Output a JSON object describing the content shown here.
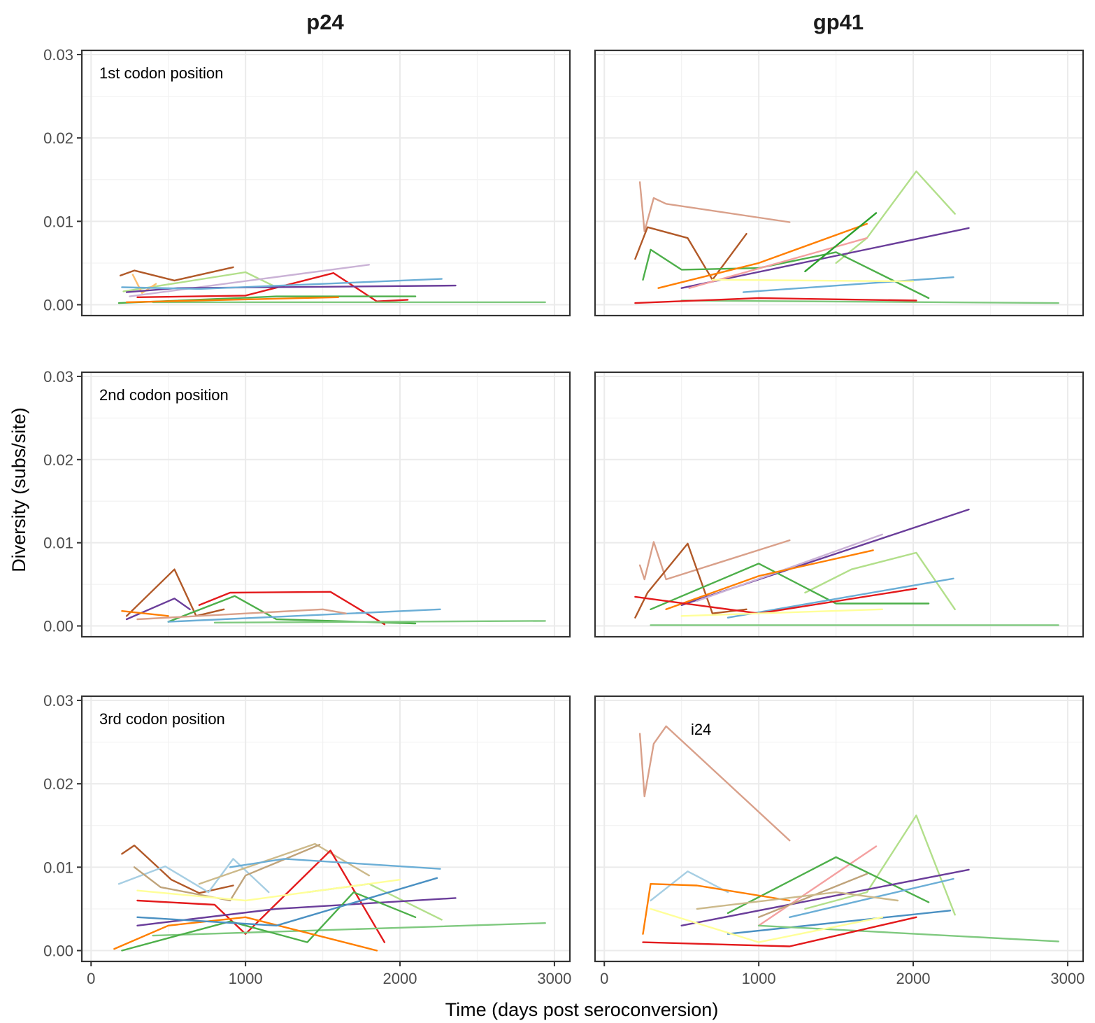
{
  "chart_data": {
    "type": "line",
    "facet_columns": [
      "p24",
      "gp41"
    ],
    "facet_rows": [
      "1st codon position",
      "2nd codon position",
      "3rd codon position"
    ],
    "xlabel": "Time (days post seroconversion)",
    "ylabel": "Diversity (subs/site)",
    "xlim": [
      -60,
      3100
    ],
    "ylim": [
      -0.0013,
      0.0305
    ],
    "x_ticks": [
      0,
      1000,
      2000,
      3000
    ],
    "y_ticks": [
      0.0,
      0.01,
      0.02,
      0.03
    ],
    "x_tick_labels": [
      "0",
      "1000",
      "2000",
      "3000"
    ],
    "y_tick_labels": [
      "0.00",
      "0.01",
      "0.02",
      "0.03"
    ],
    "grid": true,
    "annotation": {
      "panel": "gp41 / 3rd codon position",
      "text": "i24",
      "x": 560,
      "y": 0.0259
    },
    "panels": [
      {
        "column": "p24",
        "row": "1st codon position",
        "series": [
          {
            "color": "#b15928",
            "x": [
              190,
              280,
              540,
              920
            ],
            "y": [
              0.0035,
              0.0041,
              0.0029,
              0.0045
            ]
          },
          {
            "color": "#b2df8a",
            "x": [
              210,
              520,
              1000,
              1200
            ],
            "y": [
              0.0016,
              0.0025,
              0.0039,
              0.0021
            ]
          },
          {
            "color": "#cab2d6",
            "x": [
              250,
              1800
            ],
            "y": [
              0.001,
              0.0048
            ]
          },
          {
            "color": "#e31a1c",
            "x": [
              300,
              1000,
              1570,
              1850,
              2050
            ],
            "y": [
              0.0009,
              0.0011,
              0.0038,
              0.0004,
              0.0006
            ]
          },
          {
            "color": "#fdbf6f",
            "x": [
              270,
              330,
              420
            ],
            "y": [
              0.0036,
              0.0014,
              0.0025
            ]
          },
          {
            "color": "#6a3d9a",
            "x": [
              230,
              560,
              2360
            ],
            "y": [
              0.0015,
              0.002,
              0.0023
            ]
          },
          {
            "color": "#6baed6",
            "x": [
              200,
              700,
              2270
            ],
            "y": [
              0.0021,
              0.0019,
              0.0031
            ]
          },
          {
            "color": "#4daf4a",
            "x": [
              180,
              1200,
              2100
            ],
            "y": [
              0.0002,
              0.001,
              0.001
            ]
          },
          {
            "color": "#7fc97f",
            "x": [
              400,
              2940
            ],
            "y": [
              0.0003,
              0.0003
            ]
          },
          {
            "color": "#ff7f00",
            "x": [
              230,
              900,
              1600
            ],
            "y": [
              0.0003,
              0.0006,
              0.0009
            ]
          }
        ]
      },
      {
        "column": "gp41",
        "row": "1st codon position",
        "series": [
          {
            "color": "#d9a08a",
            "x": [
              230,
              260,
              320,
              400,
              1200
            ],
            "y": [
              0.0147,
              0.0088,
              0.0128,
              0.0121,
              0.0099
            ]
          },
          {
            "color": "#b15928",
            "x": [
              200,
              280,
              540,
              700,
              920
            ],
            "y": [
              0.0055,
              0.0093,
              0.008,
              0.003,
              0.0085
            ]
          },
          {
            "color": "#b2df8a",
            "x": [
              1500,
              1700,
              2020,
              2270
            ],
            "y": [
              0.005,
              0.008,
              0.016,
              0.0109
            ]
          },
          {
            "color": "#6a3d9a",
            "x": [
              500,
              2360
            ],
            "y": [
              0.002,
              0.0092
            ]
          },
          {
            "color": "#4daf4a",
            "x": [
              250,
              300,
              500,
              1000,
              1500,
              2100
            ],
            "y": [
              0.003,
              0.0066,
              0.0042,
              0.0044,
              0.0063,
              0.0008
            ]
          },
          {
            "color": "#ff7f00",
            "x": [
              350,
              1000,
              1700
            ],
            "y": [
              0.002,
              0.005,
              0.0097
            ]
          },
          {
            "color": "#f4a0a0",
            "x": [
              550,
              1700
            ],
            "y": [
              0.002,
              0.008
            ]
          },
          {
            "color": "#2ca02c",
            "x": [
              1300,
              1760
            ],
            "y": [
              0.004,
              0.011
            ]
          },
          {
            "color": "#6baed6",
            "x": [
              900,
              2260
            ],
            "y": [
              0.0015,
              0.0033
            ]
          },
          {
            "color": "#7fc97f",
            "x": [
              500,
              2940
            ],
            "y": [
              0.0005,
              0.0002
            ]
          },
          {
            "color": "#ffff99",
            "x": [
              700,
              2000
            ],
            "y": [
              0.003,
              0.0028
            ]
          },
          {
            "color": "#e31a1c",
            "x": [
              200,
              1000,
              2020
            ],
            "y": [
              0.0002,
              0.0008,
              0.0005
            ]
          }
        ]
      },
      {
        "column": "p24",
        "row": "2nd codon position",
        "series": [
          {
            "color": "#b15928",
            "x": [
              230,
              540,
              680,
              860
            ],
            "y": [
              0.0012,
              0.0068,
              0.0012,
              0.002
            ]
          },
          {
            "color": "#e31a1c",
            "x": [
              700,
              900,
              1550,
              1900
            ],
            "y": [
              0.0025,
              0.004,
              0.0041,
              0.0002
            ]
          },
          {
            "color": "#4daf4a",
            "x": [
              500,
              930,
              1200,
              2100
            ],
            "y": [
              0.0005,
              0.0036,
              0.0008,
              0.0003
            ]
          },
          {
            "color": "#6a3d9a",
            "x": [
              230,
              540,
              640
            ],
            "y": [
              0.0008,
              0.0033,
              0.002
            ]
          },
          {
            "color": "#6baed6",
            "x": [
              500,
              2260
            ],
            "y": [
              0.0005,
              0.002
            ]
          },
          {
            "color": "#7fc97f",
            "x": [
              800,
              2940
            ],
            "y": [
              0.0004,
              0.0006
            ]
          },
          {
            "color": "#d9a08a",
            "x": [
              300,
              1500,
              1650
            ],
            "y": [
              0.0008,
              0.002,
              0.0015
            ]
          },
          {
            "color": "#ff7f00",
            "x": [
              200,
              500
            ],
            "y": [
              0.0018,
              0.0012
            ]
          }
        ]
      },
      {
        "column": "gp41",
        "row": "2nd codon position",
        "series": [
          {
            "color": "#d9a08a",
            "x": [
              230,
              260,
              320,
              400,
              1200
            ],
            "y": [
              0.0073,
              0.0056,
              0.0101,
              0.0056,
              0.0103
            ]
          },
          {
            "color": "#b15928",
            "x": [
              200,
              280,
              540,
              700,
              920
            ],
            "y": [
              0.001,
              0.004,
              0.0099,
              0.0015,
              0.002
            ]
          },
          {
            "color": "#6a3d9a",
            "x": [
              500,
              2360
            ],
            "y": [
              0.0025,
              0.014
            ]
          },
          {
            "color": "#b2df8a",
            "x": [
              1300,
              1600,
              2020,
              2270
            ],
            "y": [
              0.004,
              0.0068,
              0.0088,
              0.002
            ]
          },
          {
            "color": "#4daf4a",
            "x": [
              300,
              1000,
              1500,
              2100
            ],
            "y": [
              0.002,
              0.0075,
              0.0027,
              0.0027
            ]
          },
          {
            "color": "#cab2d6",
            "x": [
              600,
              1800
            ],
            "y": [
              0.003,
              0.011
            ]
          },
          {
            "color": "#ff7f00",
            "x": [
              400,
              1000,
              1740
            ],
            "y": [
              0.002,
              0.006,
              0.0091
            ]
          },
          {
            "color": "#6baed6",
            "x": [
              800,
              2260
            ],
            "y": [
              0.001,
              0.0057
            ]
          },
          {
            "color": "#e31a1c",
            "x": [
              200,
              1000,
              2020
            ],
            "y": [
              0.0035,
              0.0015,
              0.0045
            ]
          },
          {
            "color": "#7fc97f",
            "x": [
              300,
              2940
            ],
            "y": [
              0.0001,
              0.0001
            ]
          },
          {
            "color": "#ffff99",
            "x": [
              500,
              1800
            ],
            "y": [
              0.0012,
              0.002
            ]
          }
        ]
      },
      {
        "column": "p24",
        "row": "3rd codon position",
        "series": [
          {
            "color": "#b15928",
            "x": [
              200,
              280,
              520,
              700,
              920
            ],
            "y": [
              0.0116,
              0.0126,
              0.0085,
              0.0069,
              0.0078
            ]
          },
          {
            "color": "#a6cee3",
            "x": [
              180,
              480,
              760,
              920,
              1150
            ],
            "y": [
              0.008,
              0.0101,
              0.007,
              0.011,
              0.007
            ]
          },
          {
            "color": "#ccb98a",
            "x": [
              700,
              1450,
              1800
            ],
            "y": [
              0.008,
              0.0128,
              0.009
            ]
          },
          {
            "color": "#bfa37a",
            "x": [
              280,
              450,
              900,
              1000,
              1480
            ],
            "y": [
              0.01,
              0.0076,
              0.006,
              0.009,
              0.0127
            ]
          },
          {
            "color": "#e31a1c",
            "x": [
              300,
              800,
              1000,
              1550,
              1900
            ],
            "y": [
              0.006,
              0.0055,
              0.002,
              0.012,
              0.001
            ]
          },
          {
            "color": "#6baed6",
            "x": [
              900,
              1250,
              2260
            ],
            "y": [
              0.01,
              0.011,
              0.0098
            ]
          },
          {
            "color": "#b2df8a",
            "x": [
              1400,
              1800,
              2270
            ],
            "y": [
              0.007,
              0.008,
              0.0037
            ]
          },
          {
            "color": "#6a3d9a",
            "x": [
              300,
              1200,
              2360
            ],
            "y": [
              0.003,
              0.005,
              0.0063
            ]
          },
          {
            "color": "#7fc97f",
            "x": [
              400,
              2940
            ],
            "y": [
              0.0018,
              0.0033
            ]
          },
          {
            "color": "#ffff99",
            "x": [
              300,
              1000,
              2000
            ],
            "y": [
              0.0072,
              0.006,
              0.0085
            ]
          },
          {
            "color": "#4daf4a",
            "x": [
              200,
              900,
              1400,
              1700,
              2100
            ],
            "y": [
              0.0,
              0.0035,
              0.001,
              0.007,
              0.004
            ]
          },
          {
            "color": "#ff7f00",
            "x": [
              150,
              500,
              1000,
              1850
            ],
            "y": [
              0.0002,
              0.003,
              0.004,
              0.0
            ]
          },
          {
            "color": "#4a90c2",
            "x": [
              300,
              1200,
              2240
            ],
            "y": [
              0.004,
              0.003,
              0.0087
            ]
          }
        ]
      },
      {
        "column": "gp41",
        "row": "3rd codon position",
        "series": [
          {
            "color": "#d9a08a",
            "x": [
              230,
              260,
              320,
              400,
              1200
            ],
            "y": [
              0.026,
              0.0185,
              0.0248,
              0.0269,
              0.0132
            ]
          },
          {
            "color": "#b2df8a",
            "x": [
              1300,
              1700,
              2020,
              2270
            ],
            "y": [
              0.005,
              0.007,
              0.0162,
              0.0043
            ]
          },
          {
            "color": "#f4a0a0",
            "x": [
              1000,
              1760
            ],
            "y": [
              0.003,
              0.0125
            ]
          },
          {
            "color": "#4daf4a",
            "x": [
              800,
              1500,
              2100
            ],
            "y": [
              0.0045,
              0.0112,
              0.0058
            ]
          },
          {
            "color": "#6a3d9a",
            "x": [
              500,
              2360
            ],
            "y": [
              0.003,
              0.0097
            ]
          },
          {
            "color": "#a6cee3",
            "x": [
              300,
              540,
              800
            ],
            "y": [
              0.006,
              0.0095,
              0.007
            ]
          },
          {
            "color": "#bfa37a",
            "x": [
              1000,
              1700
            ],
            "y": [
              0.004,
              0.0092
            ]
          },
          {
            "color": "#6baed6",
            "x": [
              1200,
              2260
            ],
            "y": [
              0.004,
              0.0086
            ]
          },
          {
            "color": "#4a90c2",
            "x": [
              800,
              2240
            ],
            "y": [
              0.002,
              0.0048
            ]
          },
          {
            "color": "#7fc97f",
            "x": [
              1000,
              2940
            ],
            "y": [
              0.003,
              0.0011
            ]
          },
          {
            "color": "#ff7f00",
            "x": [
              250,
              300,
              600,
              1200
            ],
            "y": [
              0.002,
              0.008,
              0.0078,
              0.006
            ]
          },
          {
            "color": "#e31a1c",
            "x": [
              250,
              1200,
              2020
            ],
            "y": [
              0.001,
              0.0005,
              0.004
            ]
          },
          {
            "color": "#ffff99",
            "x": [
              300,
              1000,
              1800
            ],
            "y": [
              0.005,
              0.001,
              0.004
            ]
          },
          {
            "color": "#ccb98a",
            "x": [
              600,
              1500,
              1900
            ],
            "y": [
              0.005,
              0.007,
              0.006
            ]
          }
        ]
      }
    ]
  }
}
